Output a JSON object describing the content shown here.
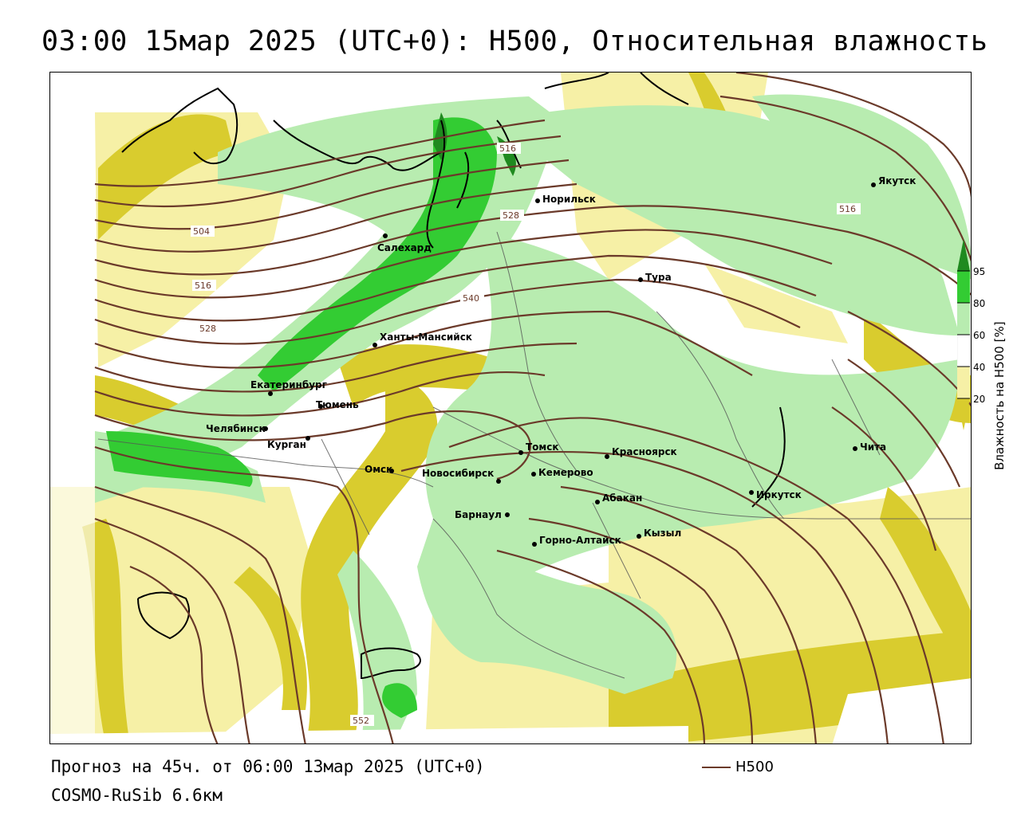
{
  "title": "03:00 15мар 2025 (UTC+0): H500, Относительная влажность",
  "footer": {
    "forecast": "Прогноз на 45ч. от 06:00 13мар 2025 (UTC+0)",
    "model": "COSMO-RuSib 6.6км"
  },
  "legend": {
    "line_label": "H500",
    "line_color": "#6b3a2a"
  },
  "colorbar": {
    "title": "Влажность на H500 [%]",
    "ticks": [
      "95",
      "80",
      "60",
      "40",
      "20"
    ],
    "colors": {
      "c95": "#1f8a1f",
      "c80": "#33cc33",
      "c60": "#b8ecb0",
      "c40": "#ffffff",
      "c20": "#f6f0a6",
      "c0": "#d9cc2e"
    }
  },
  "isohypse_labels": [
    "504",
    "516",
    "528",
    "516",
    "528",
    "540",
    "516",
    "552"
  ],
  "cities": [
    {
      "name": "Якутск"
    },
    {
      "name": "Норильск"
    },
    {
      "name": "Салехард"
    },
    {
      "name": "Тура"
    },
    {
      "name": "Ханты-Мансийск"
    },
    {
      "name": "Екатеринбург"
    },
    {
      "name": "Тюмень"
    },
    {
      "name": "Челябинск"
    },
    {
      "name": "Курган"
    },
    {
      "name": "Омск"
    },
    {
      "name": "Новосибирск"
    },
    {
      "name": "Томск"
    },
    {
      "name": "Кемерово"
    },
    {
      "name": "Красноярск"
    },
    {
      "name": "Абакан"
    },
    {
      "name": "Барнаул"
    },
    {
      "name": "Горно-Алтайск"
    },
    {
      "name": "Кызыл"
    },
    {
      "name": "Иркутск"
    },
    {
      "name": "Чита"
    }
  ]
}
